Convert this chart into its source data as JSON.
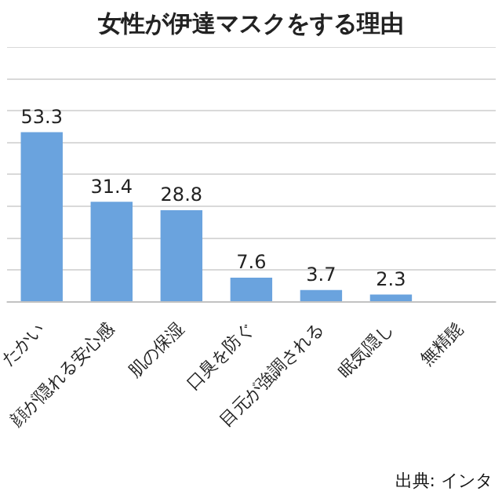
{
  "chart_data": {
    "type": "bar",
    "title": "女性が伊達マスクをする理由",
    "categories": [
      "たかい",
      "顔が隠れる安心感",
      "肌の保湿",
      "口臭を防ぐ",
      "目元が強調される",
      "眠気隠し",
      "無精髭"
    ],
    "values": [
      53.3,
      31.4,
      28.8,
      7.6,
      3.7,
      2.3,
      null
    ],
    "color": "#6aa3de",
    "ylim": [
      0,
      80
    ],
    "yticks": [
      {
        "value": 0,
        "label": null
      },
      {
        "value": 10,
        "label": null
      },
      {
        "value": 20,
        "label": null
      },
      {
        "value": 30,
        "label": null
      },
      {
        "value": 40,
        "label": null
      },
      {
        "value": 50,
        "label": null
      },
      {
        "value": 60,
        "label": null
      },
      {
        "value": 70,
        "label": null
      },
      {
        "value": 80,
        "label": null
      }
    ],
    "grid": "y",
    "tick_labels": "x",
    "data_labels": true,
    "legend": false,
    "annotations": [
      "出典: インタ"
    ]
  }
}
